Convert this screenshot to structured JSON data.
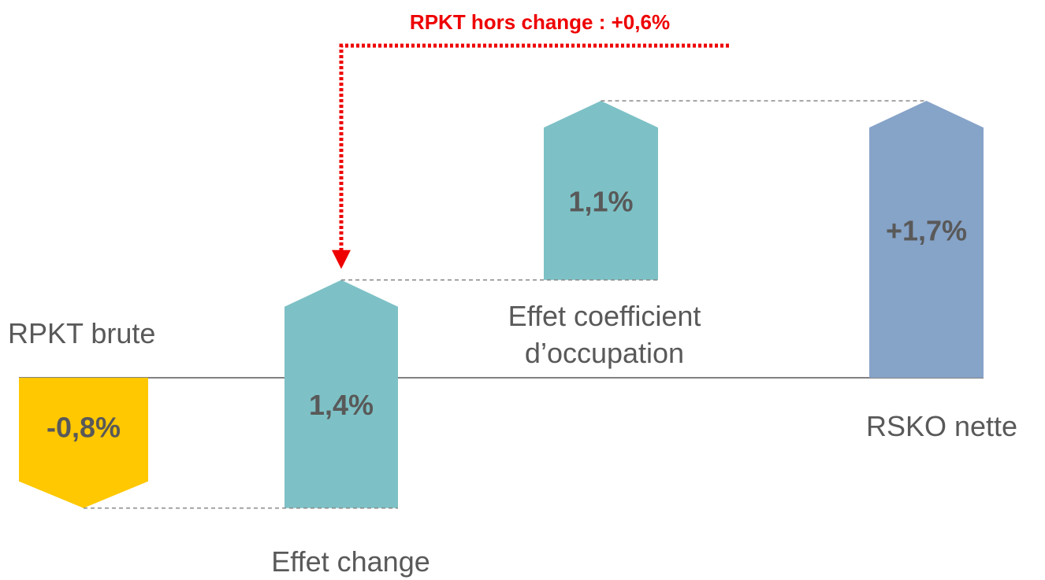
{
  "chart_data": {
    "type": "waterfall",
    "annotation": "RPKT hors change : +0,6%",
    "categories": [
      "RPKT brute",
      "Effet change",
      "Effet coefficient d’occupation",
      "RSKO nette"
    ],
    "values": [
      -0.8,
      1.4,
      1.1,
      1.7
    ],
    "value_labels": [
      "-0,8%",
      "1,4%",
      "1,1%",
      "+1,7%"
    ],
    "colors": [
      "#ffc800",
      "#7dc1c6",
      "#7dc1c6",
      "#86a3c8"
    ],
    "annotation_color": "#ee0000"
  }
}
